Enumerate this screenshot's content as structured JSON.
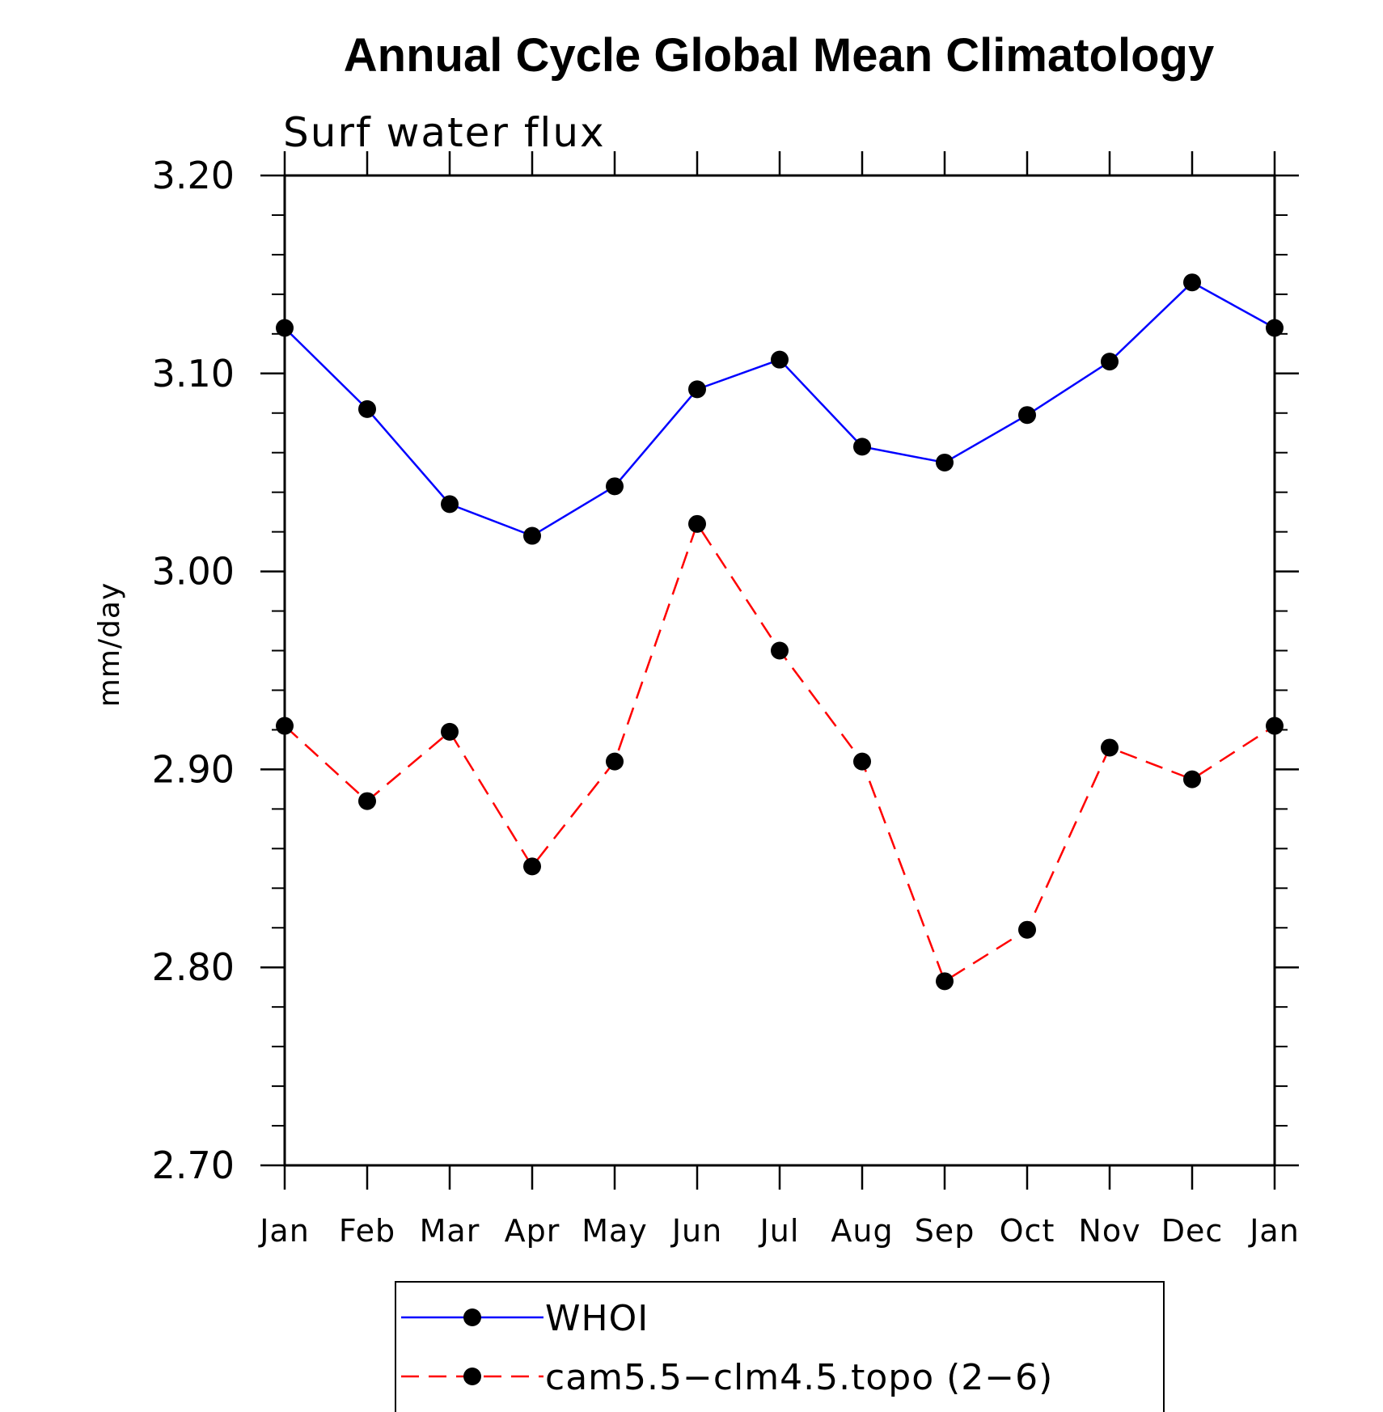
{
  "chart_data": {
    "type": "line",
    "title": "Annual Cycle Global Mean Climatology",
    "subtitle": "Surf water flux",
    "xlabel": "",
    "ylabel": "mm/day",
    "categories": [
      "Jan",
      "Feb",
      "Mar",
      "Apr",
      "May",
      "Jun",
      "Jul",
      "Aug",
      "Sep",
      "Oct",
      "Nov",
      "Dec",
      "Jan"
    ],
    "ylim": [
      2.7,
      3.2
    ],
    "yticks": [
      "2.70",
      "2.80",
      "2.90",
      "3.00",
      "3.10",
      "3.20"
    ],
    "legend_position": "bottom-center",
    "series": [
      {
        "name": "WHOI",
        "color": "#0000ff",
        "line_style": "solid",
        "marker": "filled-circle",
        "values": [
          3.123,
          3.082,
          3.034,
          3.018,
          3.043,
          3.092,
          3.107,
          3.063,
          3.055,
          3.079,
          3.106,
          3.146,
          3.123
        ]
      },
      {
        "name": "cam5.5−clm4.5.topo (2−6)",
        "color": "#ff0000",
        "line_style": "dashed",
        "marker": "filled-circle",
        "values": [
          2.922,
          2.884,
          2.919,
          2.851,
          2.904,
          3.024,
          2.96,
          2.904,
          2.793,
          2.819,
          2.911,
          2.895,
          2.922
        ]
      }
    ]
  }
}
